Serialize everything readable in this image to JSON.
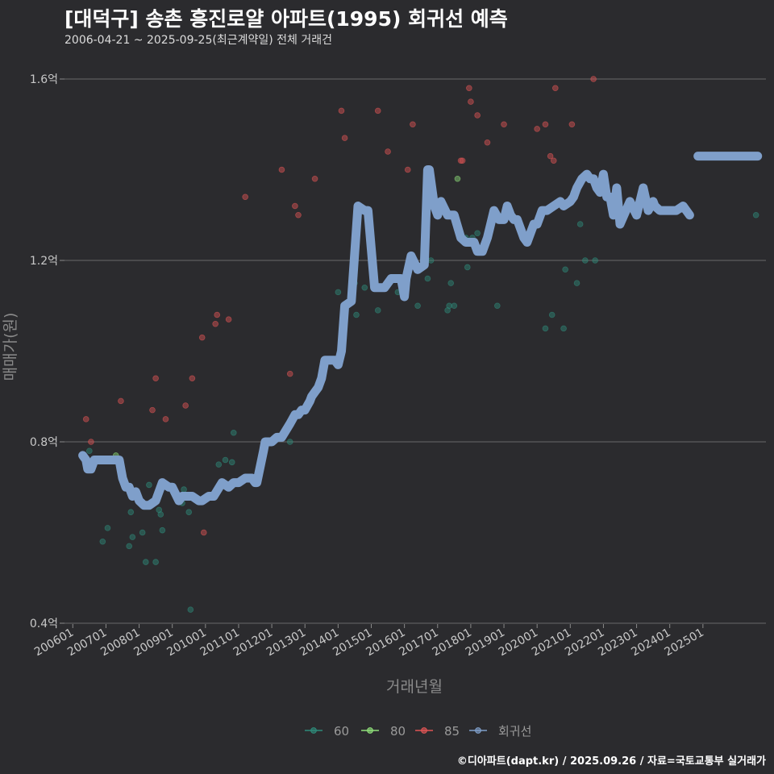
{
  "title": "[대덕구] 송촌 흥진로얄 아파트(1995) 회귀선 예측",
  "subtitle": "2006-04-21 ~ 2025-09-25(최근계약일) 전체 거래건",
  "credit": "©디아파트(dapt.kr) / 2025.09.26 / 자료=국토교통부 실거래가",
  "chart_data": {
    "type": "scatter",
    "title": "[대덕구] 송촌 흥진로얄 아파트(1995) 회귀선 예측",
    "xlabel": "거래년월",
    "ylabel": "매매가(원)",
    "ylim": [
      0.4,
      1.6
    ],
    "yticks": [
      0.4,
      0.8,
      1.2,
      1.6
    ],
    "ytick_labels": [
      "0.4억",
      "0.8억",
      "1.2억",
      "1.6억"
    ],
    "xlim": [
      2005.75,
      2026.9
    ],
    "xticks": [
      2006.0,
      2007.0,
      2008.0,
      2009.0,
      2010.0,
      2011.0,
      2012.0,
      2013.0,
      2014.0,
      2015.0,
      2016.0,
      2017.0,
      2018.0,
      2019.0,
      2020.0,
      2021.0,
      2022.0,
      2023.0,
      2024.0,
      2025.0
    ],
    "xtick_labels": [
      "200601",
      "200701",
      "200801",
      "200901",
      "201001",
      "201101",
      "201201",
      "201301",
      "201401",
      "201501",
      "201601",
      "201701",
      "201801",
      "201901",
      "202001",
      "202101",
      "202201",
      "202301",
      "202401",
      "202501"
    ],
    "legend": [
      "60",
      "80",
      "85",
      "회귀선"
    ],
    "legend_position": "bottom",
    "colors": {
      "60": "#2e8b7a",
      "80": "#8fe07a",
      "85": "#e05555",
      "회귀선": "#7f9fca"
    },
    "series": [
      {
        "name": "60",
        "points": [
          [
            2006.5,
            0.78
          ],
          [
            2006.9,
            0.58
          ],
          [
            2007.05,
            0.61
          ],
          [
            2007.7,
            0.57
          ],
          [
            2007.75,
            0.645
          ],
          [
            2007.8,
            0.59
          ],
          [
            2008.1,
            0.6
          ],
          [
            2008.2,
            0.535
          ],
          [
            2008.3,
            0.705
          ],
          [
            2008.5,
            0.535
          ],
          [
            2008.6,
            0.65
          ],
          [
            2008.65,
            0.64
          ],
          [
            2008.7,
            0.605
          ],
          [
            2009.3,
            0.665
          ],
          [
            2009.35,
            0.695
          ],
          [
            2009.5,
            0.645
          ],
          [
            2009.55,
            0.43
          ],
          [
            2009.8,
            0.67
          ],
          [
            2010.4,
            0.75
          ],
          [
            2010.6,
            0.76
          ],
          [
            2010.8,
            0.755
          ],
          [
            2010.85,
            0.82
          ],
          [
            2012.55,
            0.8
          ],
          [
            2014.0,
            1.13
          ],
          [
            2014.5,
            1.15
          ],
          [
            2014.55,
            1.08
          ],
          [
            2014.8,
            1.14
          ],
          [
            2015.2,
            1.09
          ],
          [
            2015.8,
            1.13
          ],
          [
            2016.4,
            1.1
          ],
          [
            2016.7,
            1.16
          ],
          [
            2016.8,
            1.2
          ],
          [
            2017.3,
            1.09
          ],
          [
            2017.35,
            1.1
          ],
          [
            2017.4,
            1.15
          ],
          [
            2017.5,
            1.1
          ],
          [
            2017.85,
            1.25
          ],
          [
            2017.9,
            1.185
          ],
          [
            2018.05,
            1.25
          ],
          [
            2018.2,
            1.26
          ],
          [
            2018.8,
            1.1
          ],
          [
            2020.25,
            1.05
          ],
          [
            2020.45,
            1.08
          ],
          [
            2020.8,
            1.05
          ],
          [
            2020.85,
            1.18
          ],
          [
            2021.2,
            1.15
          ],
          [
            2021.3,
            1.28
          ],
          [
            2021.45,
            1.2
          ],
          [
            2021.75,
            1.2
          ],
          [
            2026.6,
            1.3
          ]
        ]
      },
      {
        "name": "80",
        "points": [
          [
            2007.3,
            0.77
          ],
          [
            2017.6,
            1.38
          ],
          [
            2021.1,
            1.35
          ]
        ]
      },
      {
        "name": "85",
        "points": [
          [
            2006.4,
            0.85
          ],
          [
            2006.55,
            0.8
          ],
          [
            2007.45,
            0.89
          ],
          [
            2008.4,
            0.87
          ],
          [
            2008.5,
            0.94
          ],
          [
            2008.8,
            0.85
          ],
          [
            2009.4,
            0.88
          ],
          [
            2009.6,
            0.94
          ],
          [
            2009.9,
            1.03
          ],
          [
            2009.95,
            0.6
          ],
          [
            2010.3,
            1.06
          ],
          [
            2010.35,
            1.08
          ],
          [
            2010.7,
            1.07
          ],
          [
            2011.2,
            1.34
          ],
          [
            2012.3,
            1.4
          ],
          [
            2012.55,
            0.95
          ],
          [
            2012.7,
            1.32
          ],
          [
            2012.8,
            1.3
          ],
          [
            2013.3,
            1.38
          ],
          [
            2014.1,
            1.53
          ],
          [
            2014.2,
            1.47
          ],
          [
            2015.2,
            1.53
          ],
          [
            2015.5,
            1.44
          ],
          [
            2016.1,
            1.4
          ],
          [
            2016.25,
            1.5
          ],
          [
            2016.8,
            1.39
          ],
          [
            2017.7,
            1.42
          ],
          [
            2017.75,
            1.42
          ],
          [
            2017.95,
            1.58
          ],
          [
            2018.0,
            1.55
          ],
          [
            2018.2,
            1.52
          ],
          [
            2018.5,
            1.46
          ],
          [
            2019.0,
            1.5
          ],
          [
            2020.0,
            1.49
          ],
          [
            2020.25,
            1.5
          ],
          [
            2020.4,
            1.43
          ],
          [
            2020.5,
            1.42
          ],
          [
            2020.55,
            1.58
          ],
          [
            2021.05,
            1.5
          ],
          [
            2021.7,
            1.6
          ]
        ]
      },
      {
        "name": "회귀선",
        "x": [
          2006.3,
          2006.4,
          2006.45,
          2006.55,
          2006.6,
          2006.65,
          2006.8,
          2007.0,
          2007.1,
          2007.2,
          2007.3,
          2007.4,
          2007.5,
          2007.6,
          2007.7,
          2007.8,
          2007.9,
          2008.0,
          2008.15,
          2008.3,
          2008.5,
          2008.7,
          2008.9,
          2009.0,
          2009.2,
          2009.3,
          2009.4,
          2009.6,
          2009.8,
          2009.9,
          2010.1,
          2010.25,
          2010.5,
          2010.7,
          2010.85,
          2011.0,
          2011.2,
          2011.4,
          2011.5,
          2011.55,
          2011.75,
          2011.8,
          2011.85,
          2012.0,
          2012.15,
          2012.3,
          2012.55,
          2012.7,
          2012.8,
          2012.9,
          2013.0,
          2013.15,
          2013.2,
          2013.3,
          2013.4,
          2013.5,
          2013.6,
          2013.7,
          2013.75,
          2013.8,
          2013.9,
          2014.0,
          2014.1,
          2014.2,
          2014.4,
          2014.6,
          2014.8,
          2014.9,
          2015.1,
          2015.2,
          2015.4,
          2015.6,
          2015.7,
          2015.8,
          2015.9,
          2016.0,
          2016.05,
          2016.2,
          2016.4,
          2016.6,
          2016.7,
          2016.75,
          2016.9,
          2017.0,
          2017.1,
          2017.3,
          2017.5,
          2017.7,
          2017.85,
          2018.0,
          2018.1,
          2018.2,
          2018.35,
          2018.5,
          2018.6,
          2018.7,
          2018.85,
          2018.9,
          2019.0,
          2019.1,
          2019.15,
          2019.2,
          2019.3,
          2019.4,
          2019.5,
          2019.6,
          2019.7,
          2019.8,
          2019.9,
          2020.0,
          2020.1,
          2020.15,
          2020.3,
          2020.5,
          2020.7,
          2020.8,
          2021.0,
          2021.1,
          2021.2,
          2021.35,
          2021.5,
          2021.6,
          2021.7,
          2021.8,
          2021.9,
          2022.0,
          2022.1,
          2022.2,
          2022.3,
          2022.4,
          2022.5,
          2022.8,
          2023.0,
          2023.2,
          2023.35,
          2023.5,
          2023.55,
          2023.7,
          2023.8,
          2024.0,
          2024.2,
          2024.4,
          2024.6
        ],
        "y": [
          0.77,
          0.76,
          0.74,
          0.74,
          0.75,
          0.76,
          0.76,
          0.76,
          0.76,
          0.76,
          0.76,
          0.76,
          0.72,
          0.7,
          0.7,
          0.68,
          0.69,
          0.67,
          0.66,
          0.66,
          0.67,
          0.71,
          0.7,
          0.7,
          0.67,
          0.68,
          0.68,
          0.68,
          0.67,
          0.67,
          0.68,
          0.68,
          0.71,
          0.7,
          0.71,
          0.71,
          0.72,
          0.72,
          0.71,
          0.71,
          0.78,
          0.8,
          0.8,
          0.8,
          0.81,
          0.81,
          0.84,
          0.86,
          0.86,
          0.87,
          0.87,
          0.89,
          0.9,
          0.91,
          0.92,
          0.94,
          0.98,
          0.98,
          0.98,
          0.98,
          0.98,
          0.97,
          1.0,
          1.1,
          1.11,
          1.32,
          1.31,
          1.31,
          1.14,
          1.14,
          1.14,
          1.16,
          1.16,
          1.16,
          1.16,
          1.12,
          1.16,
          1.21,
          1.18,
          1.19,
          1.4,
          1.4,
          1.32,
          1.3,
          1.33,
          1.3,
          1.3,
          1.25,
          1.24,
          1.24,
          1.24,
          1.22,
          1.22,
          1.25,
          1.28,
          1.31,
          1.29,
          1.29,
          1.29,
          1.32,
          1.31,
          1.3,
          1.29,
          1.29,
          1.27,
          1.25,
          1.24,
          1.26,
          1.28,
          1.28,
          1.3,
          1.31,
          1.31,
          1.32,
          1.33,
          1.32,
          1.33,
          1.34,
          1.36,
          1.38,
          1.39,
          1.38,
          1.38,
          1.36,
          1.35,
          1.39,
          1.34,
          1.34,
          1.3,
          1.36,
          1.28,
          1.33,
          1.3,
          1.36,
          1.31,
          1.33,
          1.32,
          1.31,
          1.31,
          1.31,
          1.31,
          1.32,
          1.3
        ]
      }
    ]
  }
}
